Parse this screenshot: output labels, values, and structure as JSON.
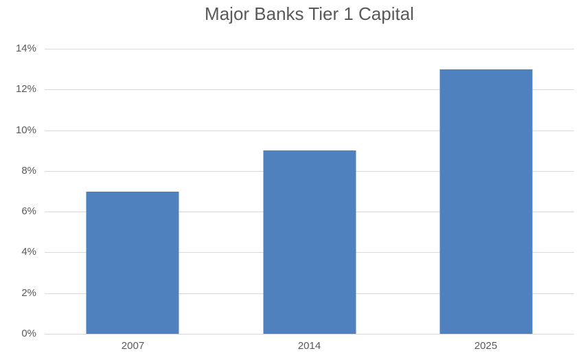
{
  "chart_data": {
    "type": "bar",
    "title": "Major Banks Tier 1 Capital",
    "categories": [
      "2007",
      "2014",
      "2025"
    ],
    "values": [
      7,
      9,
      13
    ],
    "value_unit": "%",
    "xlabel": "",
    "ylabel": "",
    "ylim": [
      0,
      14
    ],
    "ytick_step": 2,
    "yticks": [
      {
        "value": 14,
        "label": "14%"
      },
      {
        "value": 12,
        "label": "12%"
      },
      {
        "value": 10,
        "label": "10%"
      },
      {
        "value": 8,
        "label": "8%"
      },
      {
        "value": 6,
        "label": "6%"
      },
      {
        "value": 4,
        "label": "4%"
      },
      {
        "value": 2,
        "label": "2%"
      },
      {
        "value": 0,
        "label": "0%"
      }
    ],
    "grid": true,
    "legend": false,
    "colors": {
      "bar": "#4E81BD",
      "gridline": "#D9D9D9",
      "axis_line": "#D9D9D9",
      "text": "#595959",
      "background": "#FFFFFF"
    }
  }
}
